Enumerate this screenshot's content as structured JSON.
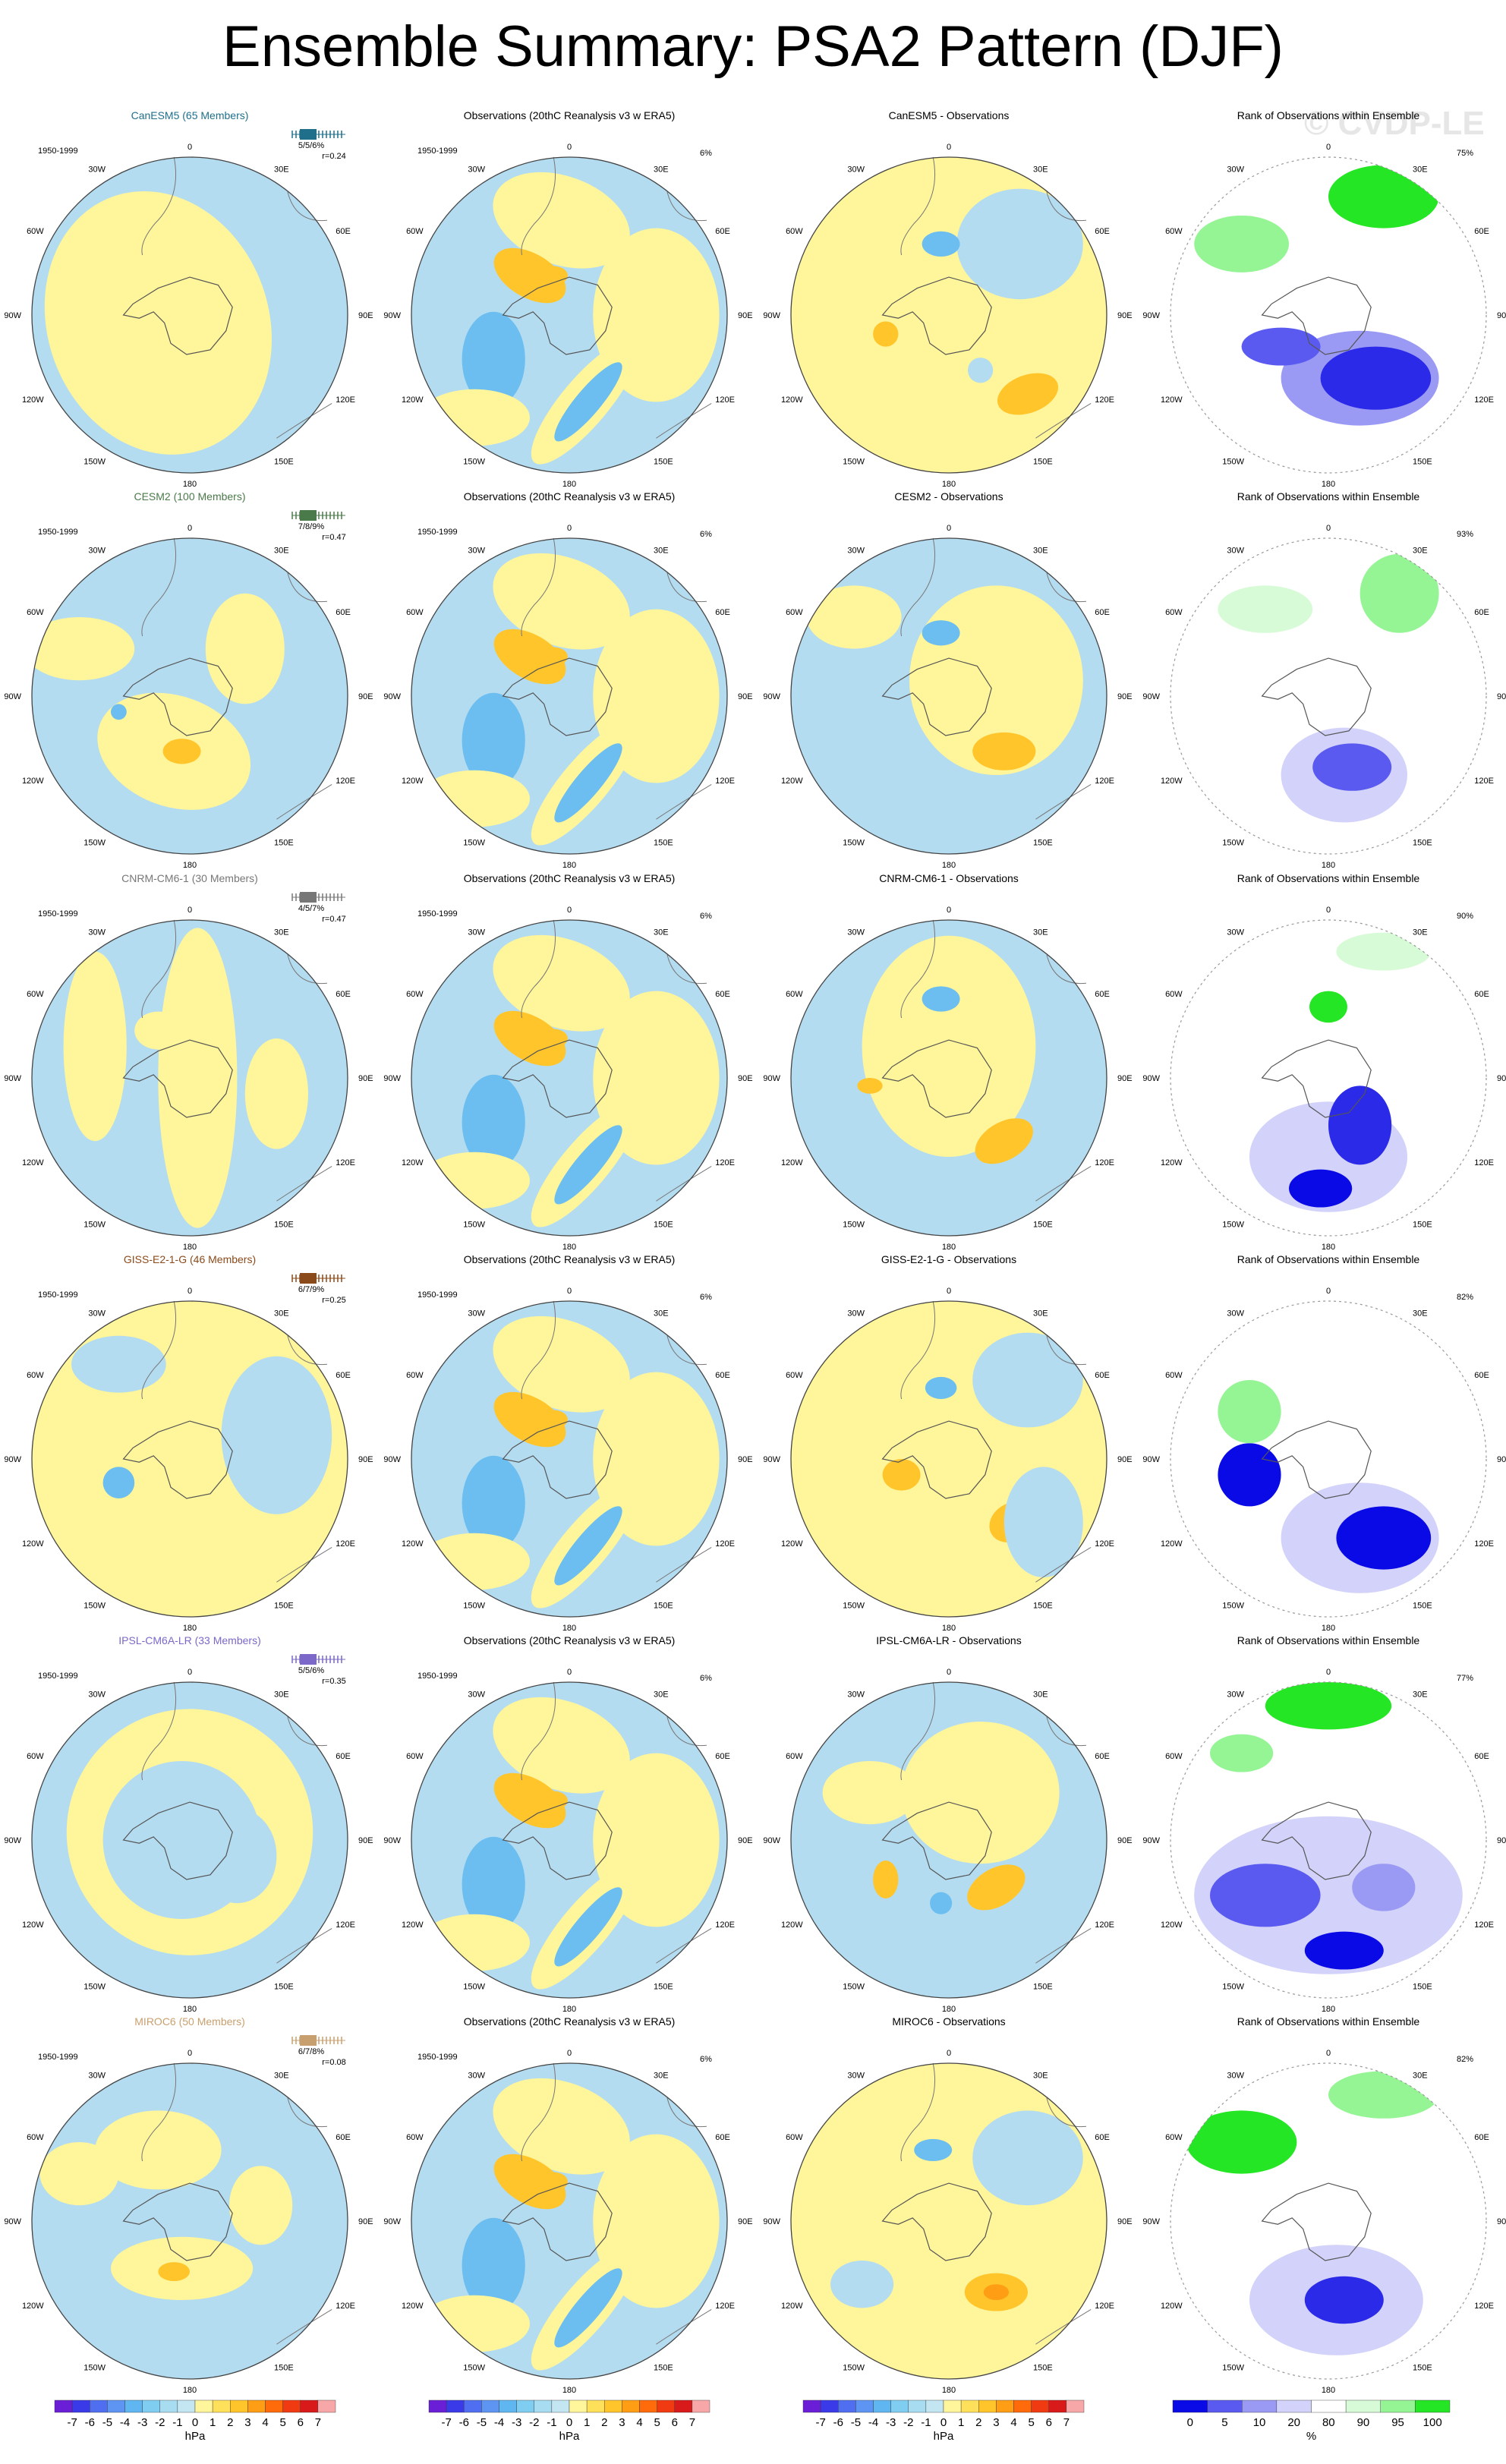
{
  "title": "Ensemble Summary: PSA2 Pattern (DJF)",
  "watermark": "© CVDP-LE",
  "period": "1950-1999",
  "obs_title": "Observations (20thC Reanalysis v3 w ERA5)",
  "obs_pct": "6%",
  "rank_title": "Rank of Observations within Ensemble",
  "lon_labels": [
    "0",
    "30E",
    "60E",
    "90E",
    "120E",
    "150E",
    "180",
    "150W",
    "120W",
    "90W",
    "60W",
    "30W"
  ],
  "rows": [
    {
      "model": "CanESM5",
      "members": "CanESM5 (65 Members)",
      "color": "#1f6f8b",
      "pcts": "5/5/6%",
      "r": "r=0.24",
      "diff_title": "CanESM5 - Observations",
      "rank_pct": "75%"
    },
    {
      "model": "CESM2",
      "members": "CESM2 (100 Members)",
      "color": "#4a7a4a",
      "pcts": "7/8/9%",
      "r": "r=0.47",
      "diff_title": "CESM2 - Observations",
      "rank_pct": "93%"
    },
    {
      "model": "CNRM-CM6-1",
      "members": "CNRM-CM6-1 (30 Members)",
      "color": "#777777",
      "pcts": "4/5/7%",
      "r": "r=0.47",
      "diff_title": "CNRM-CM6-1 - Observations",
      "rank_pct": "90%"
    },
    {
      "model": "GISS-E2-1-G",
      "members": "GISS-E2-1-G (46 Members)",
      "color": "#8b4a1a",
      "pcts": "6/7/9%",
      "r": "r=0.25",
      "diff_title": "GISS-E2-1-G - Observations",
      "rank_pct": "82%"
    },
    {
      "model": "IPSL-CM6A-LR",
      "members": "IPSL-CM6A-LR (33 Members)",
      "color": "#7b68c8",
      "pcts": "5/5/6%",
      "r": "r=0.35",
      "diff_title": "IPSL-CM6A-LR - Observations",
      "rank_pct": "77%"
    },
    {
      "model": "MIROC6",
      "members": "MIROC6 (50 Members)",
      "color": "#c8a070",
      "pcts": "6/7/8%",
      "r": "r=0.08",
      "diff_title": "MIROC6 - Observations",
      "rank_pct": "82%"
    }
  ],
  "colorbar_hpa": {
    "labels": [
      "-7",
      "-6",
      "-5",
      "-4",
      "-3",
      "-2",
      "-1",
      "0",
      "1",
      "2",
      "3",
      "4",
      "5",
      "6",
      "7"
    ],
    "colors": [
      "#6a1fd6",
      "#3a3ae8",
      "#4f6ff0",
      "#5e95f3",
      "#5fb6f0",
      "#7fcdf0",
      "#a8dcf0",
      "#c4e6f2",
      "#fff59a",
      "#ffe05a",
      "#ffc52a",
      "#ff9d14",
      "#ff6a0a",
      "#f03a12",
      "#d81a1a",
      "#f7a7a7"
    ],
    "unit": "hPa"
  },
  "colorbar_pct": {
    "labels": [
      "0",
      "5",
      "10",
      "20",
      "80",
      "90",
      "95",
      "100"
    ],
    "colors": [
      "#0a0ae6",
      "#5a5af0",
      "#9a9af5",
      "#d2d2fa",
      "#ffffff",
      "#d7fbd7",
      "#95f595",
      "#25e625"
    ],
    "unit": "%"
  },
  "palette": {
    "ocean_blue": "#b4dcf0",
    "yellow": "#fff59a",
    "orange": "#ffc52a",
    "dark_orange": "#ff9d14",
    "mid_blue": "#6cbef0",
    "rank_green": "#25e625",
    "rank_blue": "#2a2ae8"
  }
}
